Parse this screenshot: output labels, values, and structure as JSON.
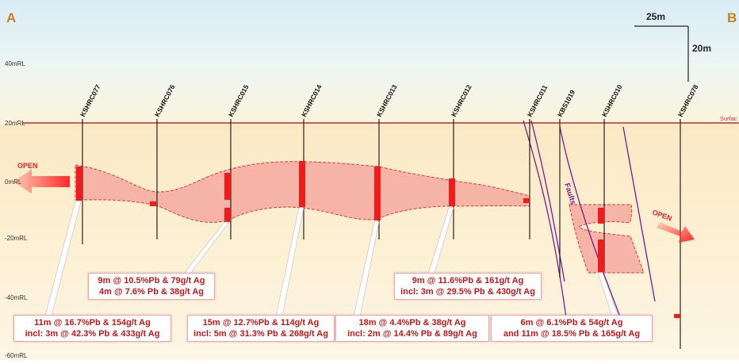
{
  "section": {
    "corner_left": "A",
    "corner_right": "B",
    "scale_horizontal": "25m",
    "scale_vertical": "20m",
    "surface_label": "Surfac",
    "faults_label": "Faults",
    "open_left": "OPEN",
    "open_right": "OPEN",
    "colors": {
      "ore": "#ef3a3a",
      "envelope": "#f5a9a0",
      "fault": "#7a1a8c",
      "surface": "#b0303a",
      "intercept_text": "#c01818"
    }
  },
  "elevations": [
    {
      "label": "40mRL"
    },
    {
      "label": "20mRL"
    },
    {
      "label": "0mRL"
    },
    {
      "label": "-20mRL"
    },
    {
      "label": "-40mRL"
    },
    {
      "label": "-60mRL"
    }
  ],
  "drillholes": [
    {
      "id": "KSHRC077"
    },
    {
      "id": "KSHRC076"
    },
    {
      "id": "KSHRC015"
    },
    {
      "id": "KSHRC014"
    },
    {
      "id": "KSHRC013"
    },
    {
      "id": "KSHRC012"
    },
    {
      "id": "KSHRC011"
    },
    {
      "id": "KBS1019"
    },
    {
      "id": "KSHRC010"
    },
    {
      "id": "KSHRC078"
    }
  ],
  "intercepts": [
    {
      "line1": "11m @ 16.7%Pb & 154g/t Ag",
      "line2": "incl: 3m @ 42.3% Pb & 433g/t Ag"
    },
    {
      "line1": "9m @ 10.5%Pb & 79g/t Ag",
      "line2": "4m @ 7.6% Pb & 38g/t Ag"
    },
    {
      "line1": "15m @ 12.7%Pb & 114g/t Ag",
      "line2": "incl: 5m @ 31.3% Pb & 268g/t Ag"
    },
    {
      "line1": "18m @ 4.4%Pb & 38g/t Ag",
      "line2": "incl: 2m @ 14.4% Pb & 89g/t Ag"
    },
    {
      "line1": "9m @ 11.6%Pb & 161g/t Ag",
      "line2": "incl: 3m @ 29.5% Pb & 430g/t Ag"
    },
    {
      "line1": "6m @ 6.1%Pb & 54g/t Ag",
      "line2": "and 11m @ 18.5% Pb & 165g/t Ag"
    }
  ]
}
